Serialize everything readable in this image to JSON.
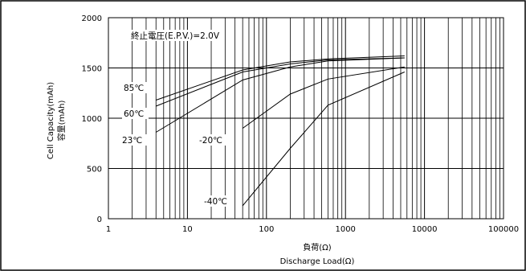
{
  "chart_data": {
    "type": "line",
    "x_scale": "log",
    "xlim": [
      1,
      100000
    ],
    "ylim": [
      0,
      2000
    ],
    "x_ticks": [
      "1",
      "10",
      "100",
      "1000",
      "10000",
      "100000"
    ],
    "y_ticks": [
      "0",
      "500",
      "1000",
      "1500",
      "2000"
    ],
    "xlabel_ja": "負荷(Ω)",
    "xlabel_en": "Discharge Load(Ω)",
    "ylabel_en": "Cell Capacity(mAh)",
    "ylabel_ja": "容量(mAh)",
    "annotation": "終止電圧(E.P.V.)=2.0V",
    "grid": true,
    "series": [
      {
        "name": "85℃",
        "x": [
          4,
          50,
          200,
          600,
          5600
        ],
        "y": [
          1180,
          1480,
          1560,
          1590,
          1620
        ]
      },
      {
        "name": "60℃",
        "x": [
          4,
          50,
          200,
          600,
          5600
        ],
        "y": [
          1120,
          1460,
          1540,
          1580,
          1600
        ]
      },
      {
        "name": "23℃",
        "x": [
          4,
          50,
          200,
          600,
          5600
        ],
        "y": [
          860,
          1380,
          1510,
          1570,
          1600
        ]
      },
      {
        "name": "-20℃",
        "x": [
          50,
          200,
          600,
          5600
        ],
        "y": [
          900,
          1240,
          1390,
          1510
        ]
      },
      {
        "name": "-40℃",
        "x": [
          50,
          200,
          600,
          5600
        ],
        "y": [
          130,
          700,
          1130,
          1460
        ]
      }
    ]
  },
  "series_labels": {
    "s85": "85℃",
    "s60": "60℃",
    "s23": "23℃",
    "sm20": "-20℃",
    "sm40": "-40℃"
  }
}
